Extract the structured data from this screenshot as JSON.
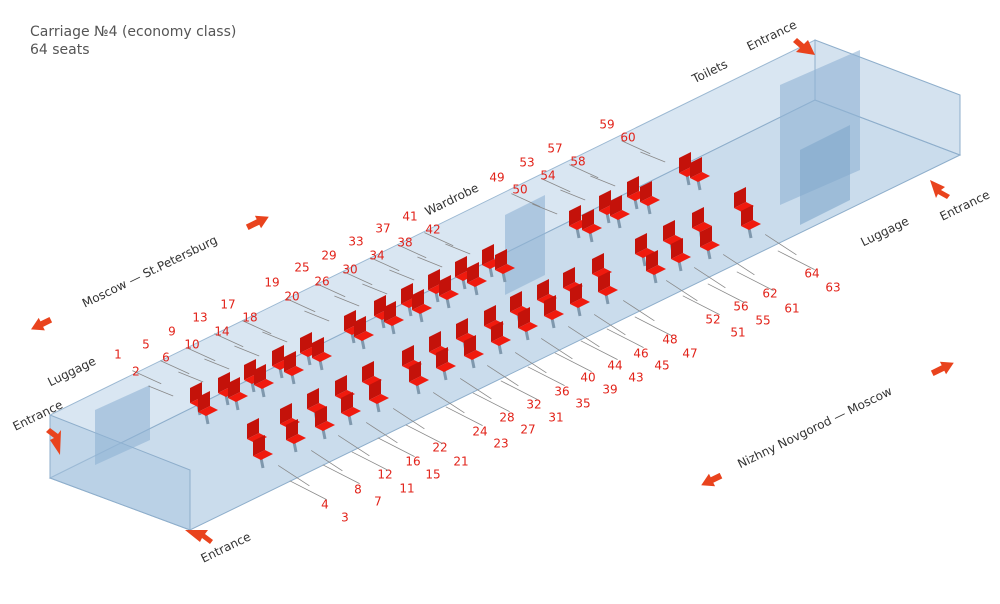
{
  "header": {
    "title": "Carriage №4 (economy class)",
    "subtitle": "64 seats"
  },
  "labels": [
    "Luggage",
    "Entrance",
    "Entrance",
    "Moscow — St.Petersburg",
    "Toilets",
    "Entrance",
    "Entrance",
    "Luggage",
    "Wardrobe",
    "Nizhny Novgorod — Moscow"
  ],
  "seat_rows": [
    [
      1,
      5,
      9,
      13,
      17,
      19,
      25,
      29,
      33,
      37,
      41,
      49,
      53,
      57,
      59
    ],
    [
      2,
      6,
      10,
      14,
      18,
      20,
      26,
      30,
      34,
      38,
      42,
      50,
      54,
      58,
      60
    ],
    [
      4,
      8,
      12,
      16,
      22,
      24,
      28,
      32,
      36,
      40,
      44,
      46,
      48,
      52,
      56,
      62,
      64
    ],
    [
      3,
      7,
      11,
      15,
      21,
      23,
      27,
      31,
      35,
      39,
      43,
      45,
      47,
      51,
      55,
      61,
      63
    ]
  ]
}
